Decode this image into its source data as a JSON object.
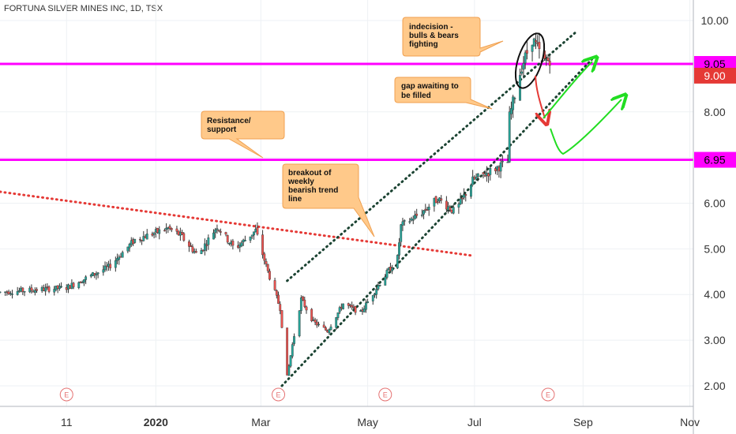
{
  "header": {
    "title": "FORTUNA SILVER MINES INC, 1D, TSX"
  },
  "chart_data": {
    "type": "candlestick",
    "x_range": [
      "2019-10-04",
      "2020-11-03"
    ],
    "y_range": [
      1.55,
      10.45
    ],
    "y_ticks": [
      {
        "v": 10,
        "label": "10.00"
      },
      {
        "v": 8,
        "label": "8.00"
      },
      {
        "v": 7,
        "label": "7.00"
      },
      {
        "v": 6,
        "label": "6.00"
      },
      {
        "v": 5,
        "label": "5.00"
      },
      {
        "v": 4,
        "label": "4.00"
      },
      {
        "v": 3,
        "label": "3.00"
      },
      {
        "v": 2,
        "label": "2.00"
      }
    ],
    "x_ticks": [
      {
        "d": "2019-11-11",
        "label": "11",
        "bold": false
      },
      {
        "d": "2020-01-01",
        "label": "2020",
        "bold": true
      },
      {
        "d": "2020-03-01",
        "label": "Mar",
        "bold": false
      },
      {
        "d": "2020-05-01",
        "label": "May",
        "bold": false
      },
      {
        "d": "2020-07-01",
        "label": "Jul",
        "bold": false
      },
      {
        "d": "2020-09-01",
        "label": "Sep",
        "bold": false
      },
      {
        "d": "2020-11-01",
        "label": "Nov",
        "bold": false
      }
    ],
    "price_badges": [
      {
        "v": 9.05,
        "label": "9.05",
        "color": "#ff00ff",
        "text": "#000000"
      },
      {
        "v": 9.0,
        "label": "9.00",
        "color": "#e53935",
        "text": "#ffffff"
      },
      {
        "v": 6.95,
        "label": "6.95",
        "color": "#ff00ff",
        "text": "#000000"
      }
    ],
    "earnings_markers": [
      {
        "d": "2019-11-11",
        "label": "E"
      },
      {
        "d": "2020-03-11",
        "label": "E"
      },
      {
        "d": "2020-05-11",
        "label": "E"
      },
      {
        "d": "2020-08-12",
        "label": "E"
      }
    ],
    "horizontal_lines": [
      {
        "v": 9.05,
        "color": "#ff00ff"
      },
      {
        "v": 6.95,
        "color": "#ff00ff"
      }
    ],
    "trend_lines": [
      {
        "from": [
          "2019-10-04",
          6.25
        ],
        "to": [
          "2020-06-30",
          4.85
        ],
        "color": "#e53935",
        "style": "dotted"
      },
      {
        "from": [
          "2020-03-16",
          4.3
        ],
        "to": [
          "2020-08-28",
          9.75
        ],
        "color": "#1b4332",
        "style": "dotted"
      },
      {
        "from": [
          "2020-03-13",
          2.0
        ],
        "to": [
          "2020-09-06",
          9.15
        ],
        "color": "#1b4332",
        "style": "dotted"
      }
    ],
    "keypoints": [
      [
        "2019-10-04",
        4.05
      ],
      [
        "2019-11-11",
        4.15
      ],
      [
        "2019-12-05",
        4.6
      ],
      [
        "2019-12-20",
        5.2
      ],
      [
        "2020-01-08",
        5.45
      ],
      [
        "2020-01-15",
        5.3
      ],
      [
        "2020-01-25",
        4.85
      ],
      [
        "2020-02-05",
        5.5
      ],
      [
        "2020-02-15",
        5.0
      ],
      [
        "2020-02-27",
        5.4
      ],
      [
        "2020-03-05",
        4.5
      ],
      [
        "2020-03-12",
        3.7
      ],
      [
        "2020-03-16",
        2.2
      ],
      [
        "2020-03-19",
        2.9
      ],
      [
        "2020-03-24",
        3.9
      ],
      [
        "2020-03-31",
        3.4
      ],
      [
        "2020-04-08",
        3.2
      ],
      [
        "2020-04-17",
        3.8
      ],
      [
        "2020-04-27",
        3.6
      ],
      [
        "2020-05-07",
        4.2
      ],
      [
        "2020-05-18",
        4.8
      ],
      [
        "2020-05-20",
        5.5
      ],
      [
        "2020-06-01",
        5.8
      ],
      [
        "2020-06-10",
        6.1
      ],
      [
        "2020-06-20",
        5.8
      ],
      [
        "2020-06-30",
        6.5
      ],
      [
        "2020-07-10",
        6.7
      ],
      [
        "2020-07-20",
        6.9
      ],
      [
        "2020-07-21",
        7.9
      ],
      [
        "2020-07-28",
        9.0
      ],
      [
        "2020-08-03",
        9.6
      ],
      [
        "2020-08-10",
        9.1
      ],
      [
        "2020-08-13",
        9.15
      ]
    ],
    "annotations": [
      {
        "id": "indecision",
        "lines": [
          "indecision -",
          "bulls & bears",
          "fighting"
        ]
      },
      {
        "id": "gap",
        "lines": [
          "gap awaiting to",
          "be filled"
        ]
      },
      {
        "id": "resistance",
        "lines": [
          "Resistance/",
          "support"
        ]
      },
      {
        "id": "breakout",
        "lines": [
          "breakout of",
          "weekly",
          "bearish trend",
          "line"
        ]
      }
    ]
  }
}
